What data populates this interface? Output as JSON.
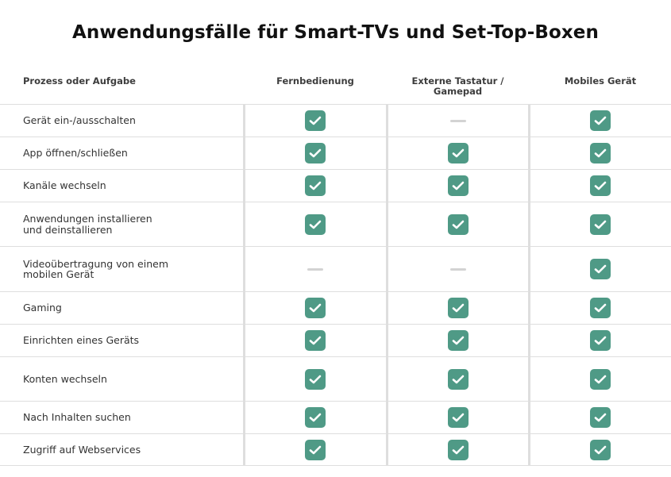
{
  "title": "Anwendungsfälle für Smart-TVs und Set-Top-Boxen",
  "columns": {
    "task": "Prozess oder Aufgabe",
    "remote": "Fernbedienung",
    "keyboard": "Externe Tastatur / Gamepad",
    "mobile": "Mobiles Gerät"
  },
  "legend_icons": {
    "yes": "checkmark-icon",
    "no": "dash-icon"
  },
  "colors": {
    "check": "#4f9a86",
    "dash": "#d3d3d3",
    "border": "#dedede"
  },
  "rows": [
    {
      "label": "Gerät ein-/ausschalten",
      "remote": true,
      "keyboard": false,
      "mobile": true
    },
    {
      "label": "App öffnen/schließen",
      "remote": true,
      "keyboard": true,
      "mobile": true
    },
    {
      "label": "Kanäle wechseln",
      "remote": true,
      "keyboard": true,
      "mobile": true
    },
    {
      "label": "Anwendungen installieren und deinstallieren",
      "remote": true,
      "keyboard": true,
      "mobile": true
    },
    {
      "label": "Videoübertragung von einem mobilen Gerät",
      "remote": false,
      "keyboard": false,
      "mobile": true
    },
    {
      "label": "Gaming",
      "remote": true,
      "keyboard": true,
      "mobile": true
    },
    {
      "label": "Einrichten eines Geräts",
      "remote": true,
      "keyboard": true,
      "mobile": true
    },
    {
      "label": "Konten wechseln",
      "remote": true,
      "keyboard": true,
      "mobile": true
    },
    {
      "label": "Nach Inhalten suchen",
      "remote": true,
      "keyboard": true,
      "mobile": true
    },
    {
      "label": "Zugriff auf Webservices",
      "remote": true,
      "keyboard": true,
      "mobile": true
    }
  ]
}
